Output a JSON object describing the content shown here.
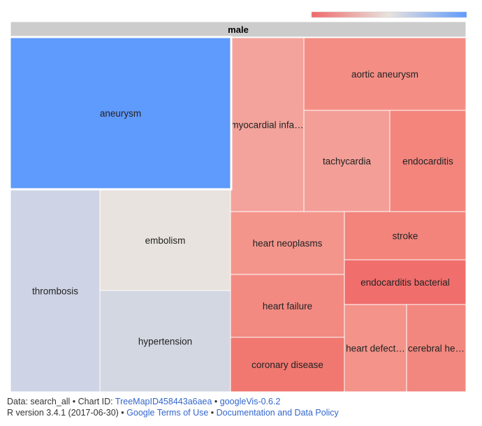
{
  "chart_data": {
    "type": "treemap",
    "root": {
      "label": "male"
    },
    "color_scale": {
      "min_color": "#f0696a",
      "mid_color": "#e8e3de",
      "max_color": "#5f9afd"
    },
    "nodes": [
      {
        "label": "aneurysm",
        "display": "aneurysm",
        "color": "#5f9afd"
      },
      {
        "label": "thrombosis",
        "display": "thrombosis",
        "color": "#ced4e5"
      },
      {
        "label": "embolism",
        "display": "embolism",
        "color": "#e8e3de"
      },
      {
        "label": "hypertension",
        "display": "hypertension",
        "color": "#d3d7e2"
      },
      {
        "label": "myocardial infarction",
        "display": "myocardial infa…",
        "color": "#f3a39b"
      },
      {
        "label": "aortic aneurysm",
        "display": "aortic aneurysm",
        "color": "#f48e85"
      },
      {
        "label": "tachycardia",
        "display": "tachycardia",
        "color": "#f39f97"
      },
      {
        "label": "endocarditis",
        "display": "endocarditis",
        "color": "#f3857d"
      },
      {
        "label": "heart neoplasms",
        "display": "heart neoplasms",
        "color": "#f4958c"
      },
      {
        "label": "stroke",
        "display": "stroke",
        "color": "#f2847c"
      },
      {
        "label": "endocarditis bacterial",
        "display": "endocarditis bacterial",
        "color": "#f06e6c"
      },
      {
        "label": "heart failure",
        "display": "heart failure",
        "color": "#f38a82"
      },
      {
        "label": "coronary disease",
        "display": "coronary disease",
        "color": "#f17870"
      },
      {
        "label": "heart defects",
        "display": "heart defect…",
        "color": "#f39389"
      },
      {
        "label": "cerebral hemorrhage",
        "display": "cerebral he…",
        "color": "#f2877f"
      }
    ]
  },
  "footer": {
    "data_prefix": "Data: search_all • Chart ID: ",
    "chart_id": "TreeMapID458443a6aea",
    "sep1": " • ",
    "googlevis": "googleVis-0.6.2",
    "r_version": "R version 3.4.1 (2017-06-30) • ",
    "terms": "Google Terms of Use",
    "sep2": " • ",
    "policy": "Documentation and Data Policy"
  }
}
